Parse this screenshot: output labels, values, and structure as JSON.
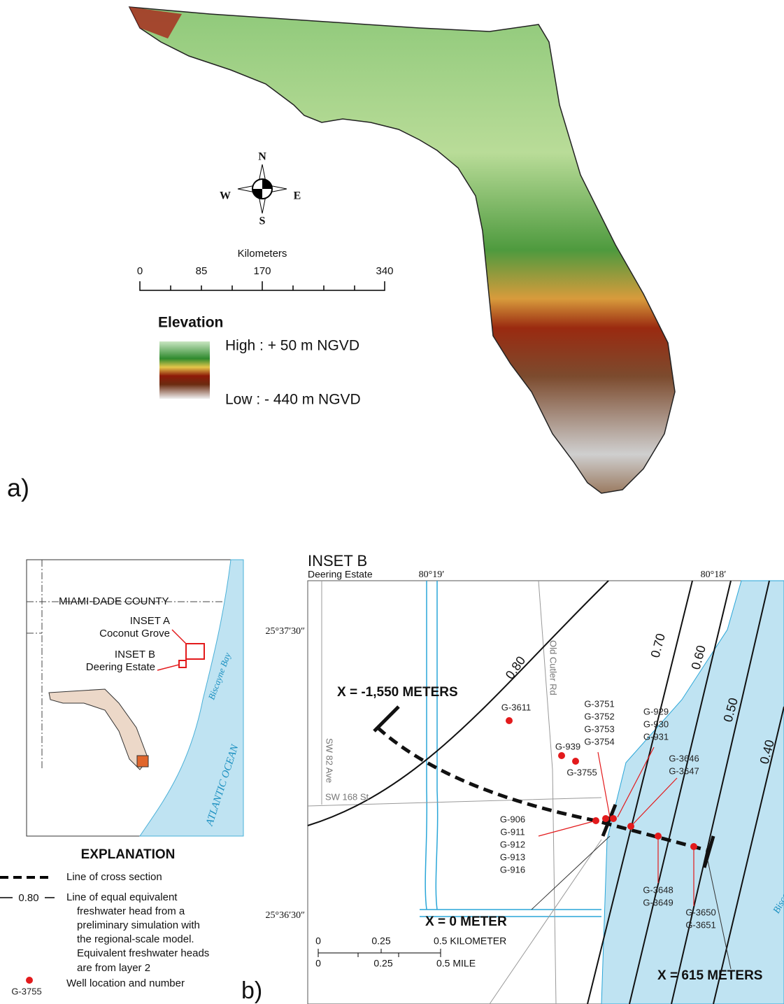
{
  "panel_a": {
    "label": "a)",
    "compass": {
      "n": "N",
      "s": "S",
      "e": "E",
      "w": "W"
    },
    "scale": {
      "title": "Kilometers",
      "ticks": [
        "0",
        "85",
        "170",
        "340"
      ]
    },
    "legend": {
      "title": "Elevation",
      "high": "High : + 50 m NGVD",
      "low": "Low : - 440 m NGVD"
    }
  },
  "panel_b": {
    "label": "b)",
    "locator": {
      "county": "MIAMI-DADE COUNTY",
      "inset_a": [
        "INSET A",
        "Coconut Grove"
      ],
      "inset_b": [
        "INSET B",
        "Deering Estate"
      ],
      "bay": "Biscayne Bay",
      "ocean": "ATLANTIC OCEAN"
    },
    "explanation": {
      "title": "EXPLANATION",
      "cross_section": "Line of cross section",
      "contour_label": "0.80",
      "contour_text": [
        "Line of equal equivalent",
        "freshwater head from a",
        "preliminary simulation with",
        "the regional-scale model.",
        "Equivalent freshwater heads",
        "are from layer 2"
      ],
      "well_example": "G-3755",
      "well_text": "Well location and number"
    },
    "inset": {
      "title": "INSET B",
      "subtitle": "Deering Estate",
      "lon": [
        "80°19′",
        "80°18′"
      ],
      "lat": [
        "25°37′30″",
        "25°36′30″"
      ],
      "roads": [
        "Old Cutler Rd",
        "SW 82 Ave",
        "SW 168 St"
      ],
      "bay": "Biscayne Bay",
      "sections": [
        "X = -1,550 METERS",
        "X = 0 METER",
        "X = 615 METERS"
      ],
      "contours": [
        "0.80",
        "0.70",
        "0.60",
        "0.50",
        "0.40"
      ],
      "wells": [
        [
          "G-3611"
        ],
        [
          "G-939"
        ],
        [
          "G-3755"
        ],
        [
          "G-3751",
          "G-3752",
          "G-3753",
          "G-3754"
        ],
        [
          "G-929",
          "G-930",
          "G-931"
        ],
        [
          "G-3646",
          "G-3647"
        ],
        [
          "G-906",
          "G-911",
          "G-912",
          "G-913",
          "G-916"
        ],
        [
          "G-3648",
          "G-3649"
        ],
        [
          "G-3650",
          "G-3651"
        ]
      ],
      "scale_km": [
        "0",
        "0.25",
        "0.5 KILOMETER"
      ],
      "scale_mi": [
        "0",
        "0.25",
        "0.5 MILE"
      ]
    }
  }
}
